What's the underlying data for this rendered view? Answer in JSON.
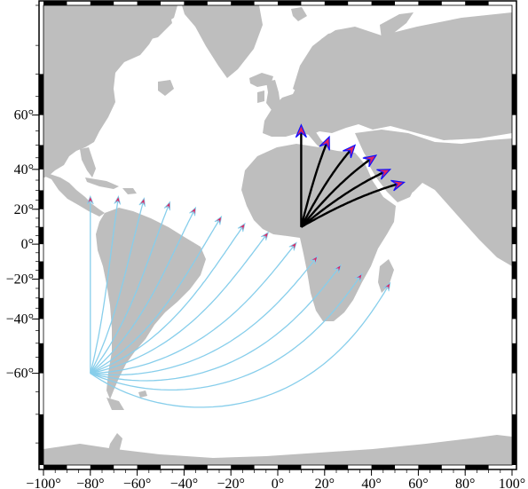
{
  "map": {
    "projection": "Mercator",
    "region": {
      "lon_min": -100,
      "lon_max": 100,
      "lat_min": -78,
      "lat_max": 80
    },
    "frame": "fancy-checkerboard",
    "land_color": "#bebebe",
    "water_color": "#ffffff",
    "axes": {
      "x_ticks": [
        "−100°",
        "−80°",
        "−60°",
        "−40°",
        "−20°",
        "0°",
        "20°",
        "40°",
        "60°",
        "80°",
        "100°"
      ],
      "x_tick_values": [
        -100,
        -80,
        -60,
        -40,
        -20,
        0,
        20,
        40,
        60,
        80,
        100
      ],
      "y_ticks": [
        "60°",
        "40°",
        "20°",
        "0°",
        "−20°",
        "−40°",
        "−60°"
      ],
      "y_tick_values": [
        60,
        40,
        20,
        0,
        -20,
        -40,
        -60
      ]
    }
  },
  "vectors": {
    "fan_a": {
      "origin": {
        "lon": -80,
        "lat": -60
      },
      "line_color": "#87ceeb",
      "head_fill": "#e0245e",
      "endpoints": [
        {
          "lon": -80,
          "lat": 27
        },
        {
          "lon": -68,
          "lat": 27
        },
        {
          "lon": -57,
          "lat": 26
        },
        {
          "lon": -46,
          "lat": 24
        },
        {
          "lon": -35,
          "lat": 21
        },
        {
          "lon": -24,
          "lat": 16
        },
        {
          "lon": -14,
          "lat": 12
        },
        {
          "lon": -4,
          "lat": 7
        },
        {
          "lon": 8,
          "lat": 1
        },
        {
          "lon": 17,
          "lat": -7
        },
        {
          "lon": 27,
          "lat": -12
        },
        {
          "lon": 36,
          "lat": -17
        },
        {
          "lon": 48,
          "lat": -22
        }
      ]
    },
    "fan_b": {
      "origin": {
        "lon": 10,
        "lat": 10
      },
      "line_color": "#000000",
      "head_fill": "#e0245e",
      "head_outline": "#1010ff",
      "endpoints": [
        {
          "lon": 10,
          "lat": 57
        },
        {
          "lon": 22,
          "lat": 53
        },
        {
          "lon": 33,
          "lat": 50
        },
        {
          "lon": 42,
          "lat": 46
        },
        {
          "lon": 48,
          "lat": 40
        },
        {
          "lon": 54,
          "lat": 34
        }
      ]
    }
  }
}
